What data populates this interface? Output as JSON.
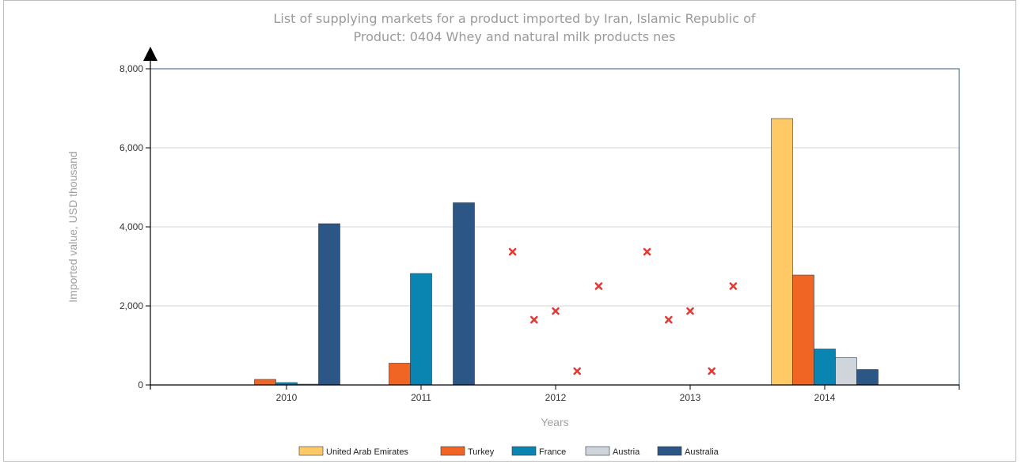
{
  "chart_data": {
    "type": "bar",
    "title": "List of supplying markets for a product imported by Iran, Islamic Republic of",
    "subtitle": "Product: 0404 Whey and natural milk products nes",
    "xlabel": "Years",
    "ylabel": "Imported value, USD thousand",
    "ylim": [
      0,
      8000
    ],
    "yticks": [
      0,
      2000,
      4000,
      6000,
      8000
    ],
    "ytick_labels": [
      "0",
      "2,000",
      "4,000",
      "6,000",
      "8,000"
    ],
    "categories": [
      "2010",
      "2011",
      "2012",
      "2013",
      "2014"
    ],
    "grid": true,
    "legend_position": "bottom",
    "series": [
      {
        "name": "United Arab Emirates",
        "color": "#ffc966",
        "values": [
          0,
          0,
          null,
          null,
          6740
        ]
      },
      {
        "name": "Turkey",
        "color": "#f06524",
        "values": [
          140,
          550,
          null,
          null,
          2780
        ]
      },
      {
        "name": "France",
        "color": "#0a84b0",
        "values": [
          60,
          2820,
          null,
          null,
          910
        ]
      },
      {
        "name": "Austria",
        "color": "#cfd5db",
        "values": [
          20,
          0,
          null,
          null,
          690
        ]
      },
      {
        "name": "Australia",
        "color": "#2b5686",
        "values": [
          4080,
          4610,
          null,
          null,
          390
        ]
      }
    ],
    "missing_markers": {
      "color": "#e53935",
      "points": [
        {
          "x": "2012",
          "offset": -0.32,
          "y": 3370
        },
        {
          "x": "2012",
          "offset": -0.16,
          "y": 1650
        },
        {
          "x": "2012",
          "offset": 0.0,
          "y": 1870
        },
        {
          "x": "2012",
          "offset": 0.16,
          "y": 350
        },
        {
          "x": "2012",
          "offset": 0.32,
          "y": 2500
        },
        {
          "x": "2013",
          "offset": -0.32,
          "y": 3370
        },
        {
          "x": "2013",
          "offset": -0.16,
          "y": 1650
        },
        {
          "x": "2013",
          "offset": 0.0,
          "y": 1870
        },
        {
          "x": "2013",
          "offset": 0.16,
          "y": 350
        },
        {
          "x": "2013",
          "offset": 0.32,
          "y": 2500
        }
      ]
    }
  }
}
